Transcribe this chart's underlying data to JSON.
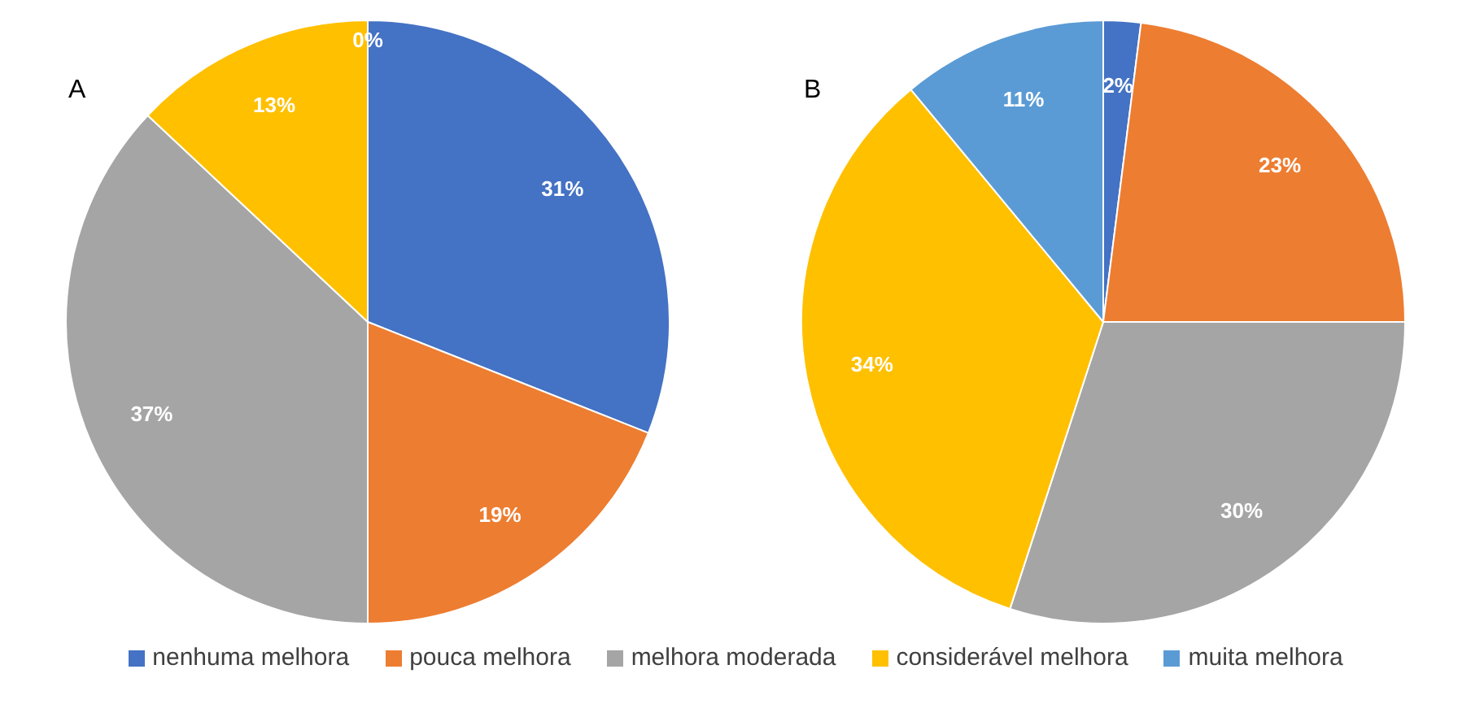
{
  "chart_data": [
    {
      "type": "pie",
      "title": "A",
      "categories": [
        "nenhuma melhora",
        "pouca melhora",
        "melhora moderada",
        "considerável melhora",
        "muita melhora"
      ],
      "values": [
        31,
        19,
        37,
        13,
        0
      ],
      "value_labels": [
        "31%",
        "19%",
        "37%",
        "13%",
        "0%"
      ],
      "colors": [
        "#4472c4",
        "#ed7d31",
        "#a5a5a5",
        "#ffc000",
        "#5b9bd5"
      ],
      "legend": "bottom"
    },
    {
      "type": "pie",
      "title": "B",
      "categories": [
        null,
        null,
        null,
        null,
        null
      ],
      "values": [
        2,
        23,
        30,
        34,
        11
      ],
      "value_labels": [
        "2%",
        "23%",
        "30%",
        "34%",
        "11%"
      ],
      "colors": [
        "#4472c4",
        "#ed7d31",
        "#a5a5a5",
        "#ffc000",
        "#5b9bd5"
      ]
    }
  ]
}
